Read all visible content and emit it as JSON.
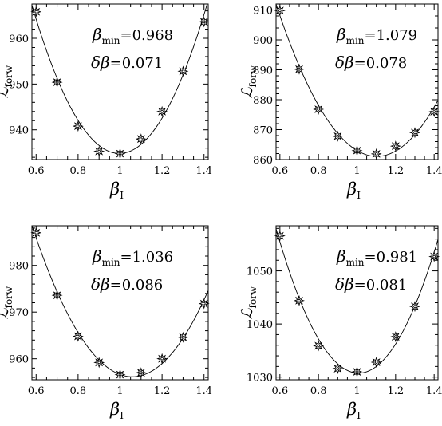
{
  "chart_data": [
    {
      "type": "scatter",
      "x": [
        0.6,
        0.7,
        0.8,
        0.9,
        1.0,
        1.1,
        1.2,
        1.3,
        1.4
      ],
      "y": [
        965.8,
        950.4,
        940.8,
        935.3,
        934.8,
        938.0,
        944.0,
        952.8,
        963.6
      ],
      "xlim": [
        0.58,
        1.42
      ],
      "ylim": [
        933.5,
        967.5
      ],
      "xticks": [
        0.6,
        0.8,
        1,
        1.2,
        1.4
      ],
      "yticks": [
        940,
        950,
        960
      ],
      "xlabel_symbol": "β",
      "xlabel_sub": "I",
      "ylabel_symbol": "ℒ",
      "ylabel_sub": "forw",
      "fit": {
        "type": "quadratic",
        "min_x": 0.968
      },
      "annotations": {
        "beta_min_sub": "min",
        "beta_min_value": "=0.968",
        "delta_beta_value": "=0.071"
      }
    },
    {
      "type": "scatter",
      "x": [
        0.6,
        0.7,
        0.8,
        0.9,
        1.0,
        1.1,
        1.2,
        1.3,
        1.4
      ],
      "y": [
        909.8,
        890.2,
        876.8,
        867.8,
        863.0,
        861.9,
        864.5,
        869.0,
        876.0
      ],
      "xlim": [
        0.58,
        1.42
      ],
      "ylim": [
        860,
        912
      ],
      "xticks": [
        0.6,
        0.8,
        1,
        1.2,
        1.4
      ],
      "yticks": [
        860,
        870,
        880,
        890,
        900,
        910
      ],
      "xlabel_symbol": "β",
      "xlabel_sub": "I",
      "ylabel_symbol": "ℒ",
      "ylabel_sub": "forw",
      "fit": {
        "type": "quadratic",
        "min_x": 1.079
      },
      "annotations": {
        "beta_min_sub": "min",
        "beta_min_value": "=1.079",
        "delta_beta_value": "=0.078"
      }
    },
    {
      "type": "scatter",
      "x": [
        0.6,
        0.7,
        0.8,
        0.9,
        1.0,
        1.1,
        1.2,
        1.3,
        1.4
      ],
      "y": [
        987.0,
        973.6,
        964.8,
        959.2,
        956.6,
        957.0,
        960.0,
        964.6,
        971.8
      ],
      "xlim": [
        0.58,
        1.42
      ],
      "ylim": [
        955.5,
        988.5
      ],
      "xticks": [
        0.6,
        0.8,
        1,
        1.2,
        1.4
      ],
      "yticks": [
        960,
        970,
        980
      ],
      "xlabel_symbol": "β",
      "xlabel_sub": "I",
      "ylabel_symbol": "ℒ",
      "ylabel_sub": "forw",
      "fit": {
        "type": "quadratic",
        "min_x": 1.036
      },
      "annotations": {
        "beta_min_sub": "min",
        "beta_min_value": "=1.036",
        "delta_beta_value": "=0.086"
      }
    },
    {
      "type": "scatter",
      "x": [
        0.6,
        0.7,
        0.8,
        0.9,
        1.0,
        1.1,
        1.2,
        1.3,
        1.4
      ],
      "y": [
        1056.6,
        1044.4,
        1035.9,
        1031.6,
        1031.0,
        1032.8,
        1037.6,
        1043.3,
        1052.7
      ],
      "xlim": [
        0.58,
        1.42
      ],
      "ylim": [
        1029.5,
        1058.5
      ],
      "xticks": [
        0.6,
        0.8,
        1,
        1.2,
        1.4
      ],
      "yticks": [
        1030,
        1040,
        1050
      ],
      "xlabel_symbol": "β",
      "xlabel_sub": "I",
      "ylabel_symbol": "ℒ",
      "ylabel_sub": "forw",
      "fit": {
        "type": "quadratic",
        "min_x": 0.981
      },
      "annotations": {
        "beta_min_sub": "min",
        "beta_min_value": "=0.981",
        "delta_beta_value": "=0.081"
      }
    }
  ],
  "colors": {
    "ink": "#000000",
    "background": "#ffffff"
  },
  "marker_icon": "star-burst"
}
